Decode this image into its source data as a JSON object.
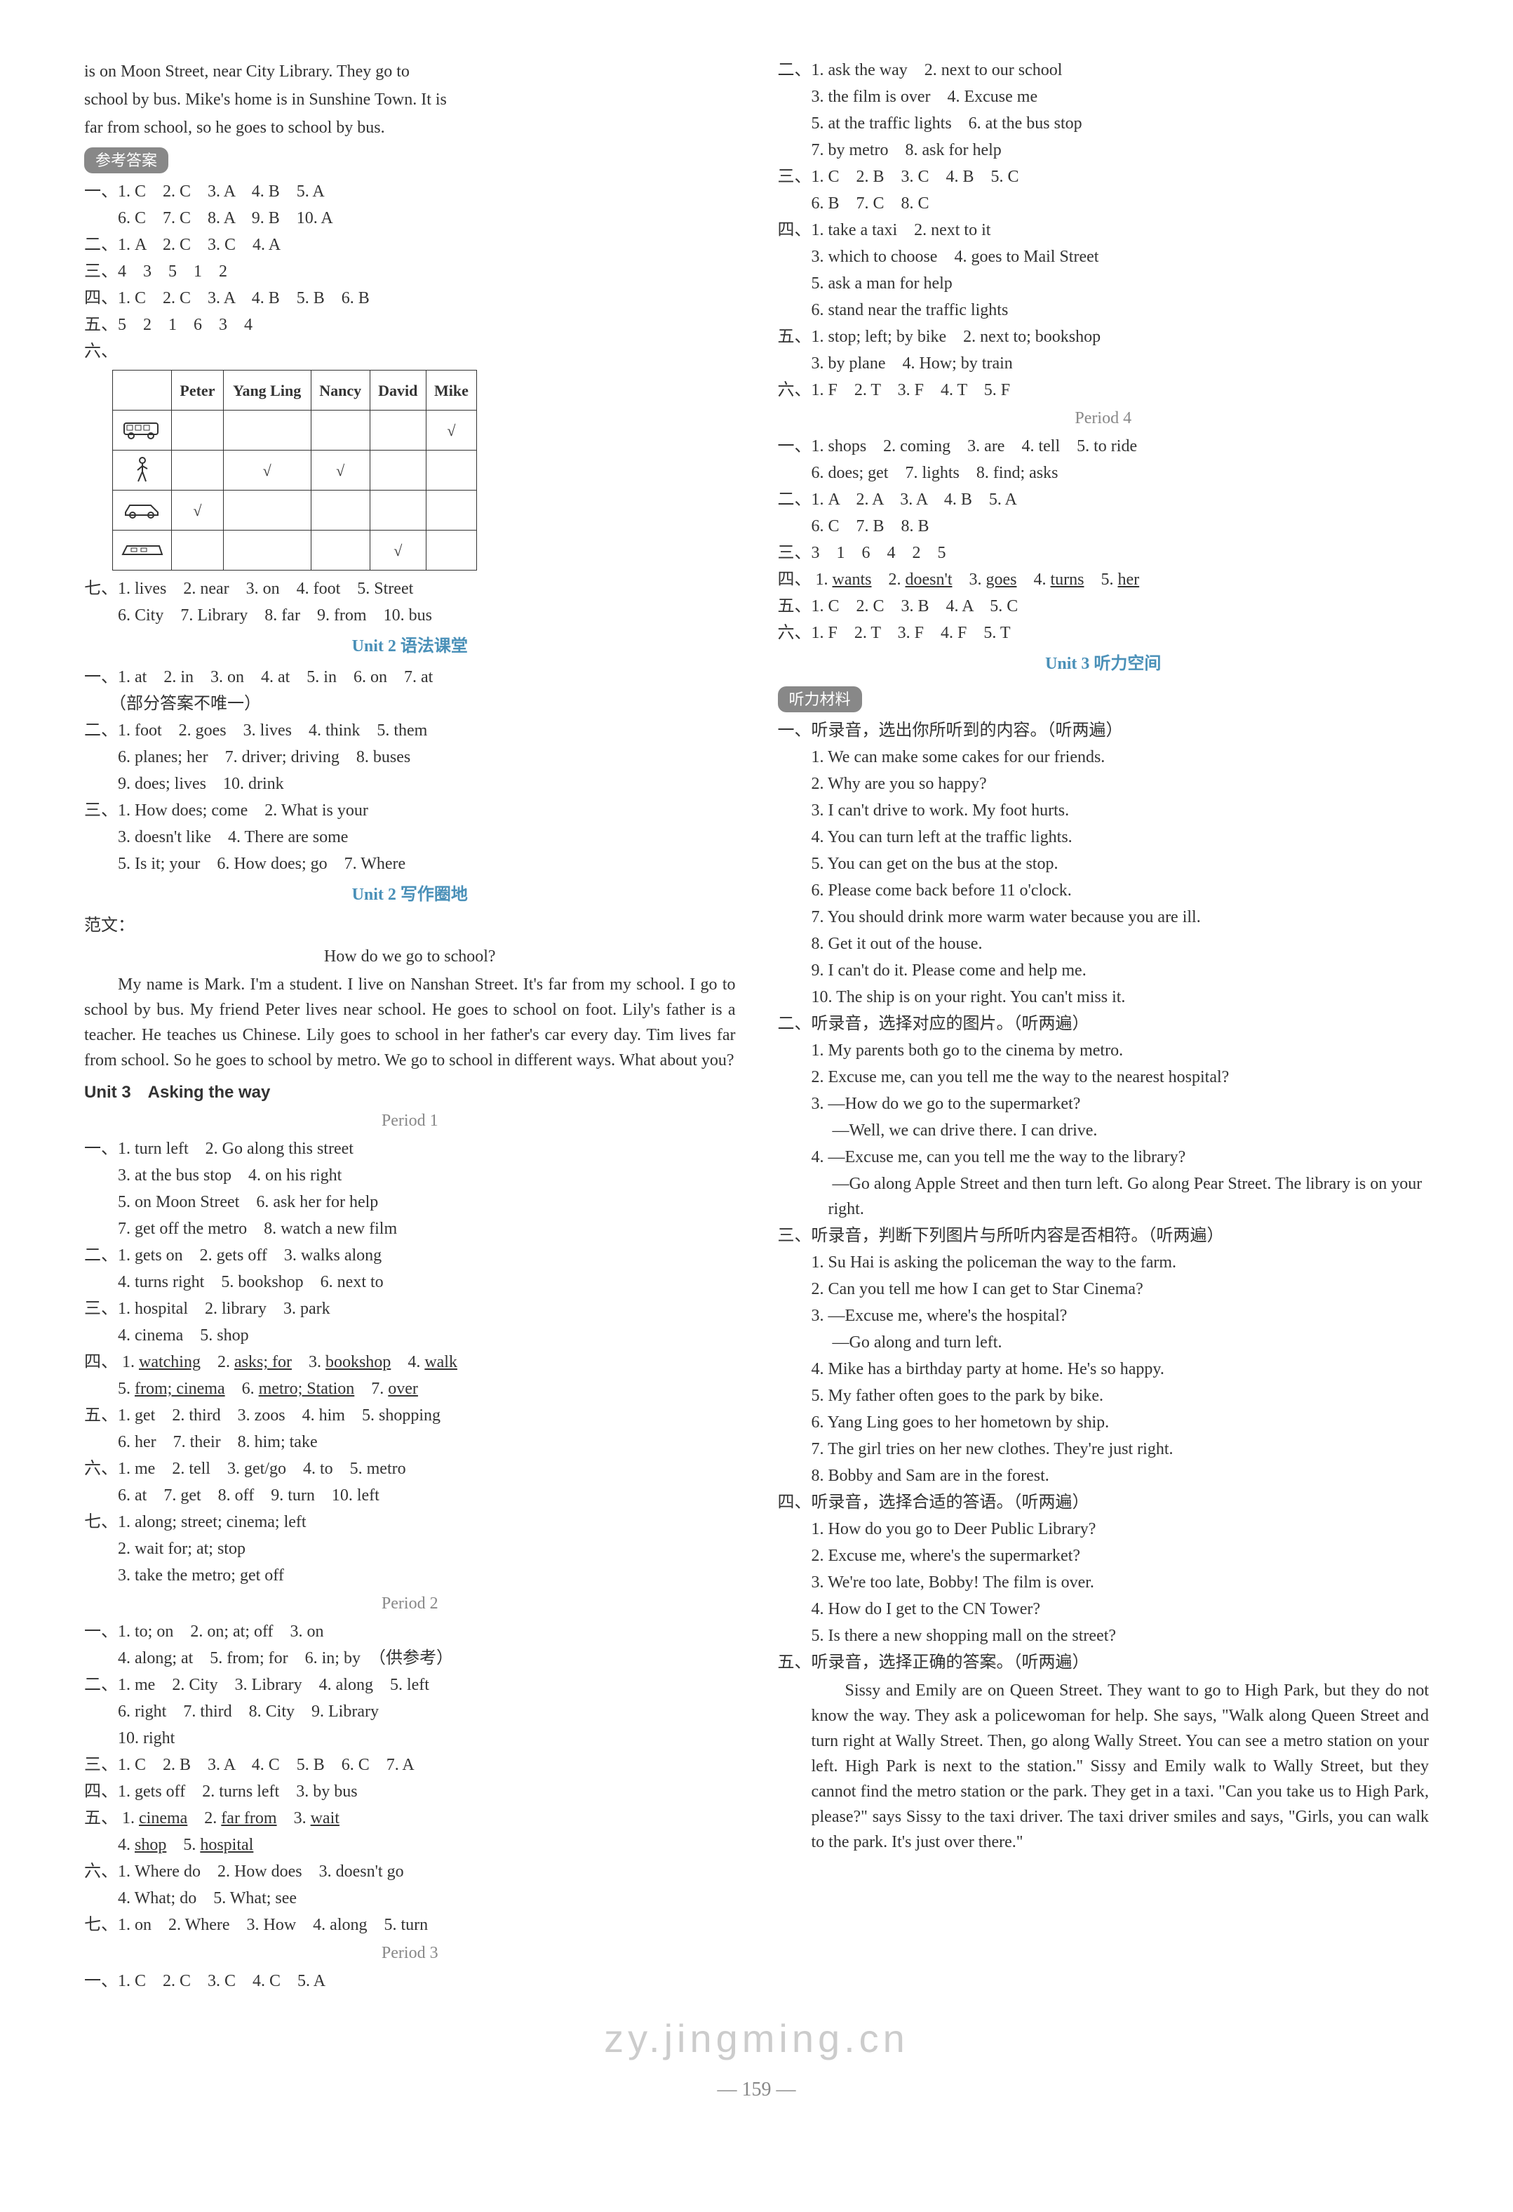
{
  "page": {
    "number": "— 159 —",
    "watermark": "zy.jingming.cn"
  },
  "left": {
    "intro_lines": [
      "is on Moon Street, near City Library. They go to",
      "school by bus. Mike's home is in Sunshine Town. It is",
      "far from school, so he goes to school by bus."
    ],
    "answer_badge": "参考答案",
    "answers_top": [
      "一、1. C　2. C　3. A　4. B　5. A",
      "　　6. C　7. C　8. A　9. B　10. A",
      "二、1. A　2. C　3. C　4. A",
      "三、4　3　5　1　2",
      "四、1. C　2. C　3. A　4. B　5. B　6. B",
      "五、5　2　1　6　3　4",
      "六、"
    ],
    "table": {
      "headers": [
        "",
        "Peter",
        "Yang Ling",
        "Nancy",
        "David",
        "Mike"
      ],
      "rows": [
        {
          "icon": "bus",
          "cells": [
            "",
            "",
            "",
            "",
            "√"
          ]
        },
        {
          "icon": "walk",
          "cells": [
            "",
            "√",
            "√",
            "",
            ""
          ]
        },
        {
          "icon": "car",
          "cells": [
            "√",
            "",
            "",
            "",
            ""
          ]
        },
        {
          "icon": "train",
          "cells": [
            "",
            "",
            "",
            "√",
            ""
          ]
        }
      ]
    },
    "seven": [
      "七、1. lives　2. near　3. on　4. foot　5. Street",
      "　　6. City　7. Library　8. far　9. from　10. bus"
    ],
    "unit2_grammar_title": "Unit 2 语法课堂",
    "unit2_grammar": [
      "一、1. at　2. in　3. on　4. at　5. in　6. on　7. at",
      "　　（部分答案不唯一）",
      "二、1. foot　2. goes　3. lives　4. think　5. them",
      "　　6. planes; her　7. driver; driving　8. buses",
      "　　9. does; lives　10. drink",
      "三、1. How does; come　2. What is your",
      "　　3. doesn't like　4. There are some",
      "　　5. Is it; your　6. How does; go　7. Where"
    ],
    "unit2_writing_title": "Unit 2 写作圈地",
    "essay_label": "范文：",
    "essay_title": "How do we go to school?",
    "essay_body": "My name is Mark. I'm a student. I live on Nanshan Street. It's far from my school. I go to school by bus. My friend Peter lives near school. He goes to school on foot. Lily's father is a teacher. He teaches us Chinese. Lily goes to school in her father's car every day. Tim lives far from school. So he goes to school by metro. We go to school in different ways. What about you?",
    "unit3_title": "Unit 3　Asking the way",
    "period1_title": "Period 1",
    "period1": [
      "一、1. turn left　2. Go along this street",
      "　　3. at the bus stop　4. on his right",
      "　　5. on Moon Street　6. ask her for help",
      "　　7. get off the metro　8. watch a new film",
      "二、1. gets on　2. gets off　3. walks along",
      "　　4. turns right　5. bookshop　6. next to",
      "三、1. hospital　2. library　3. park",
      "　　4. cinema　5. shop"
    ],
    "period1_four": {
      "prefix": "四、",
      "items": [
        {
          "n": "1.",
          "t": "watching"
        },
        {
          "n": "2.",
          "t": "asks; for",
          "plain_after": ""
        },
        {
          "n": "3.",
          "t": "bookshop"
        },
        {
          "n": "4.",
          "t": "walk"
        }
      ],
      "items2": [
        {
          "n": "5.",
          "t": "from; cinema"
        },
        {
          "n": "6.",
          "t": "metro; Station",
          "plain_before": ""
        },
        {
          "n": "7.",
          "t": "over"
        }
      ]
    },
    "period1_rest": [
      "五、1. get　2. third　3. zoos　4. him　5. shopping",
      "　　6. her　7. their　8. him; take",
      "六、1. me　2. tell　3. get/go　4. to　5. metro",
      "　　6. at　7. get　8. off　9. turn　10. left",
      "七、1. along; street; cinema; left",
      "　　2. wait for; at; stop",
      "　　3. take the metro; get off"
    ],
    "period2_title": "Period 2",
    "period2": [
      "一、1. to; on　2. on; at; off　3. on",
      "　　4. along; at　5. from; for　6. in; by　（供参考）",
      "二、1. me　2. City　3. Library　4. along　5. left",
      "　　6. right　7. third　8. City　9. Library",
      "　　10. right",
      "三、1. C　2. B　3. A　4. C　5. B　6. C　7. A",
      "四、1. gets off　2. turns left　3. by bus"
    ],
    "period2_five": {
      "prefix": "五、",
      "items": [
        {
          "n": "1.",
          "t": "cinema"
        },
        {
          "n": "2.",
          "t": "far from",
          "plain_before": ""
        },
        {
          "n": "3.",
          "t": "wait"
        }
      ],
      "items2": [
        {
          "n": "4.",
          "t": "shop"
        },
        {
          "n": "5.",
          "t": "hospital",
          "plain_before": ""
        }
      ]
    },
    "period2_rest": [
      "六、1. Where do　2. How does　3. doesn't go",
      "　　4. What; do　5. What; see",
      "七、1. on　2. Where　3. How　4. along　5. turn"
    ],
    "period3_title": "Period 3",
    "period3": [
      "一、1. C　2. C　3. C　4. C　5. A"
    ]
  },
  "right": {
    "top": [
      "二、1. ask the way　2. next to our school",
      "　　3. the film is over　4. Excuse me",
      "　　5. at the traffic lights　6. at the bus stop",
      "　　7. by metro　8. ask for help",
      "三、1. C　2. B　3. C　4. B　5. C",
      "　　6. B　7. C　8. C",
      "四、1. take a taxi　2. next to it",
      "　　3. which to choose　4. goes to Mail Street",
      "　　5. ask a man for help",
      "　　6. stand near the traffic lights",
      "五、1. stop; left; by bike　2. next to; bookshop",
      "　　3. by plane　4. How; by train",
      "六、1. F　2. T　3. F　4. T　5. F"
    ],
    "period4_title": "Period 4",
    "period4": [
      "一、1. shops　2. coming　3. are　4. tell　5. to ride",
      "　　6. does; get　7. lights　8. find; asks",
      "二、1. A　2. A　3. A　4. B　5. A",
      "　　6. C　7. B　8. B",
      "三、3　1　6　4　2　5"
    ],
    "period4_four": {
      "prefix": "四、",
      "items": [
        {
          "n": "1.",
          "t": "wants"
        },
        {
          "n": "2.",
          "t": "doesn't"
        },
        {
          "n": "3.",
          "t": "goes"
        },
        {
          "n": "4.",
          "t": "turns"
        },
        {
          "n": "5.",
          "t": "her"
        }
      ]
    },
    "period4_rest": [
      "五、1. C　2. C　3. B　4. A　5. C",
      "六、1. F　2. T　3. F　4. F　5. T"
    ],
    "unit3_listen_title": "Unit 3 听力空间",
    "listen_badge": "听力材料",
    "listen1_head": "一、听录音，选出你所听到的内容。（听两遍）",
    "listen1": [
      "1. We can make some cakes for our friends.",
      "2. Why are you so happy?",
      "3. I can't drive to work. My foot hurts.",
      "4. You can turn left at the traffic lights.",
      "5. You can get on the bus at the stop.",
      "6. Please come back before 11 o'clock.",
      "7. You should drink more warm water because you are ill.",
      "8. Get it out of the house.",
      "9. I can't do it. Please come and help me.",
      "10. The ship is on your right. You can't miss it."
    ],
    "listen2_head": "二、听录音，选择对应的图片。（听两遍）",
    "listen2": [
      "1. My parents both go to the cinema by metro.",
      "2. Excuse me, can you tell me the way to the nearest hospital?",
      "3. —How do we go to the supermarket?",
      "　 —Well, we can drive there. I can drive.",
      "4. —Excuse me, can you tell me the way to the library?",
      "　 —Go along Apple Street and then turn left. Go along Pear Street. The library is on your right."
    ],
    "listen3_head": "三、听录音，判断下列图片与所听内容是否相符。（听两遍）",
    "listen3": [
      "1. Su Hai is asking the policeman the way to the farm.",
      "2. Can you tell me how I can get to Star Cinema?",
      "3. —Excuse me, where's the hospital?",
      "　 —Go along and turn left.",
      "4. Mike has a birthday party at home. He's so happy.",
      "5. My father often goes to the park by bike.",
      "6. Yang Ling goes to her hometown by ship.",
      "7. The girl tries on her new clothes. They're just right.",
      "8. Bobby and Sam are in the forest."
    ],
    "listen4_head": "四、听录音，选择合适的答语。（听两遍）",
    "listen4": [
      "1. How do you go to Deer Public Library?",
      "2. Excuse me, where's the supermarket?",
      "3. We're too late, Bobby! The film is over.",
      "4. How do I get to the CN Tower?",
      "5. Is there a new shopping mall on the street?"
    ],
    "listen5_head": "五、听录音，选择正确的答案。（听两遍）",
    "listen5_body": "Sissy and Emily are on Queen Street. They want to go to High Park, but they do not know the way. They ask a policewoman for help. She says, \"Walk along Queen Street and turn right at Wally Street. Then, go along Wally Street. You can see a metro station on your left. High Park is next to the station.\" Sissy and Emily walk to Wally Street, but they cannot find the metro station or the park. They get in a taxi. \"Can you take us to High Park, please?\" says Sissy to the taxi driver. The taxi driver smiles and says, \"Girls, you can walk to the park. It's just over there.\""
  },
  "colors": {
    "section_title": "#4a90b8",
    "badge_bg": "#888888",
    "badge_fg": "#ffffff",
    "text": "#333333",
    "period": "#888888",
    "watermark": "#cccccc"
  }
}
